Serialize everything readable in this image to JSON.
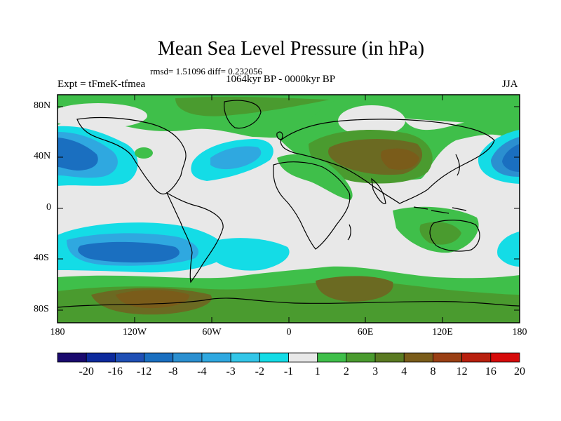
{
  "title": "Mean Sea Level Pressure (in hPa)",
  "stats_line": "rmsd= 1.51096 diff= 0.232056",
  "period_line": "1064kyr BP - 0000kyr BP",
  "experiment_label": "Expt = tFmeK-tfmea",
  "season_label": "JJA",
  "y_axis": {
    "ticks": [
      "80N",
      "40N",
      "0",
      "40S",
      "80S"
    ]
  },
  "x_axis": {
    "ticks": [
      "180",
      "120W",
      "60W",
      "0",
      "60E",
      "120E",
      "180"
    ]
  },
  "colorbar": {
    "labels": [
      "-20",
      "-16",
      "-12",
      "-8",
      "-4",
      "-3",
      "-2",
      "-1",
      "1",
      "2",
      "3",
      "4",
      "8",
      "12",
      "16",
      "20"
    ],
    "colors": [
      "#1a0a6e",
      "#0d2a9c",
      "#1f4fb5",
      "#1a6fc0",
      "#2b8fd0",
      "#2fa8e0",
      "#33c6e8",
      "#14dce6",
      "#e8e8e8",
      "#3fbf4a",
      "#4a9b2f",
      "#5a7a22",
      "#7a5c1a",
      "#9a3f14",
      "#b8200e",
      "#d60a0a"
    ]
  },
  "field_colors": {
    "neutral": "#e8e8e8",
    "green": "#3fbf4a",
    "olive": "#4a9b2f",
    "brown": "#6b6a22",
    "darkbrown": "#7a5c1a",
    "cyan": "#14dce6",
    "lightblue": "#2fa8e0",
    "blue": "#2b8fd0",
    "darkblue": "#1a6fc0"
  }
}
